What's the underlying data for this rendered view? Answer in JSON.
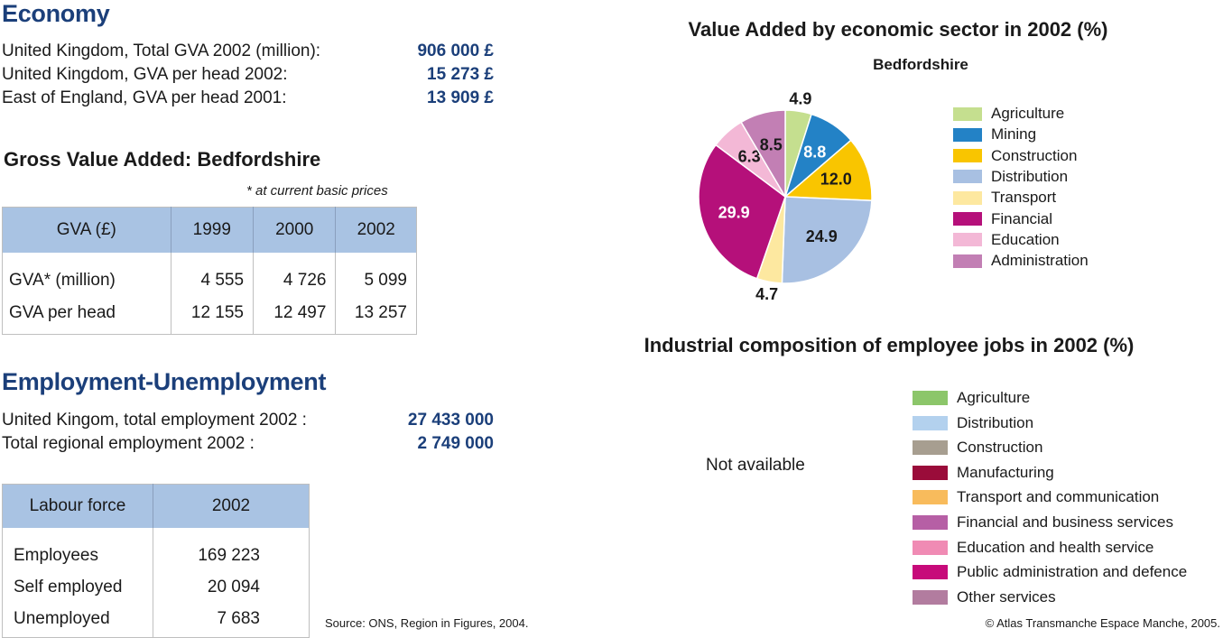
{
  "economy": {
    "title": "Economy",
    "rows": [
      {
        "label": "United Kingdom, Total GVA 2002 (million):",
        "value": "906 000 £"
      },
      {
        "label": "United Kingdom, GVA per head 2002:",
        "value": "15 273 £"
      },
      {
        "label": "East of England, GVA per head 2001:",
        "value": "13 909 £"
      }
    ]
  },
  "gva": {
    "title": "Gross Value Added: Bedfordshire",
    "note": "* at current basic prices",
    "headers": [
      "GVA (£)",
      "1999",
      "2000",
      "2002"
    ],
    "rows": [
      [
        "GVA* (million)",
        "4 555",
        "4 726",
        "5 099"
      ],
      [
        "GVA per head",
        "12 155",
        "12 497",
        "13 257"
      ]
    ]
  },
  "employment": {
    "title": "Employment-Unemployment",
    "rows": [
      {
        "label": "United Kingom, total employment 2002 :",
        "value": "27 433 000"
      },
      {
        "label": "Total regional employment 2002 :",
        "value": "2 749 000"
      }
    ]
  },
  "labour": {
    "headers": [
      "Labour force",
      "2002"
    ],
    "rows": [
      [
        "Employees",
        "169 223"
      ],
      [
        "Self employed",
        "20 094"
      ],
      [
        "Unemployed",
        "7 683"
      ]
    ]
  },
  "chart_data": {
    "type": "pie",
    "title": "Value Added by economic sector in 2002 (%)",
    "subtitle": "Bedfordshire",
    "categories": [
      "Agriculture",
      "Mining",
      "Construction",
      "Distribution",
      "Transport",
      "Financial",
      "Education",
      "Administration"
    ],
    "values": [
      4.9,
      8.8,
      12.0,
      24.9,
      4.7,
      29.9,
      6.3,
      8.5
    ],
    "labels": [
      "4.9",
      "8.8",
      "12.0",
      "24.9",
      "4.7",
      "29.9",
      "6.3",
      "8.5"
    ],
    "colors": [
      "#c5df8f",
      "#2382c6",
      "#f9c500",
      "#a8c0e2",
      "#fde8a0",
      "#b5107a",
      "#f3b8d6",
      "#c27fb4"
    ],
    "legend_placement": "right"
  },
  "jobs": {
    "title": "Industrial composition of employee jobs in 2002 (%)",
    "not_available": "Not available",
    "legend": [
      {
        "label": "Agriculture",
        "color": "#8cc66a"
      },
      {
        "label": "Distribution",
        "color": "#b3d1ee"
      },
      {
        "label": "Construction",
        "color": "#a79e90"
      },
      {
        "label": "Manufacturing",
        "color": "#9a0c3a"
      },
      {
        "label": "Transport and communication",
        "color": "#f8bb5c"
      },
      {
        "label": "Financial and business services",
        "color": "#b65fa5"
      },
      {
        "label": "Education and health service",
        "color": "#f08bb4"
      },
      {
        "label": "Public administration and defence",
        "color": "#c70a7a"
      },
      {
        "label": "Other services",
        "color": "#b27c9f"
      }
    ]
  },
  "footer": {
    "source": "Source: ONS, Region in Figures, 2004.",
    "copyright": "© Atlas Transmanche Espace Manche, 2005."
  }
}
